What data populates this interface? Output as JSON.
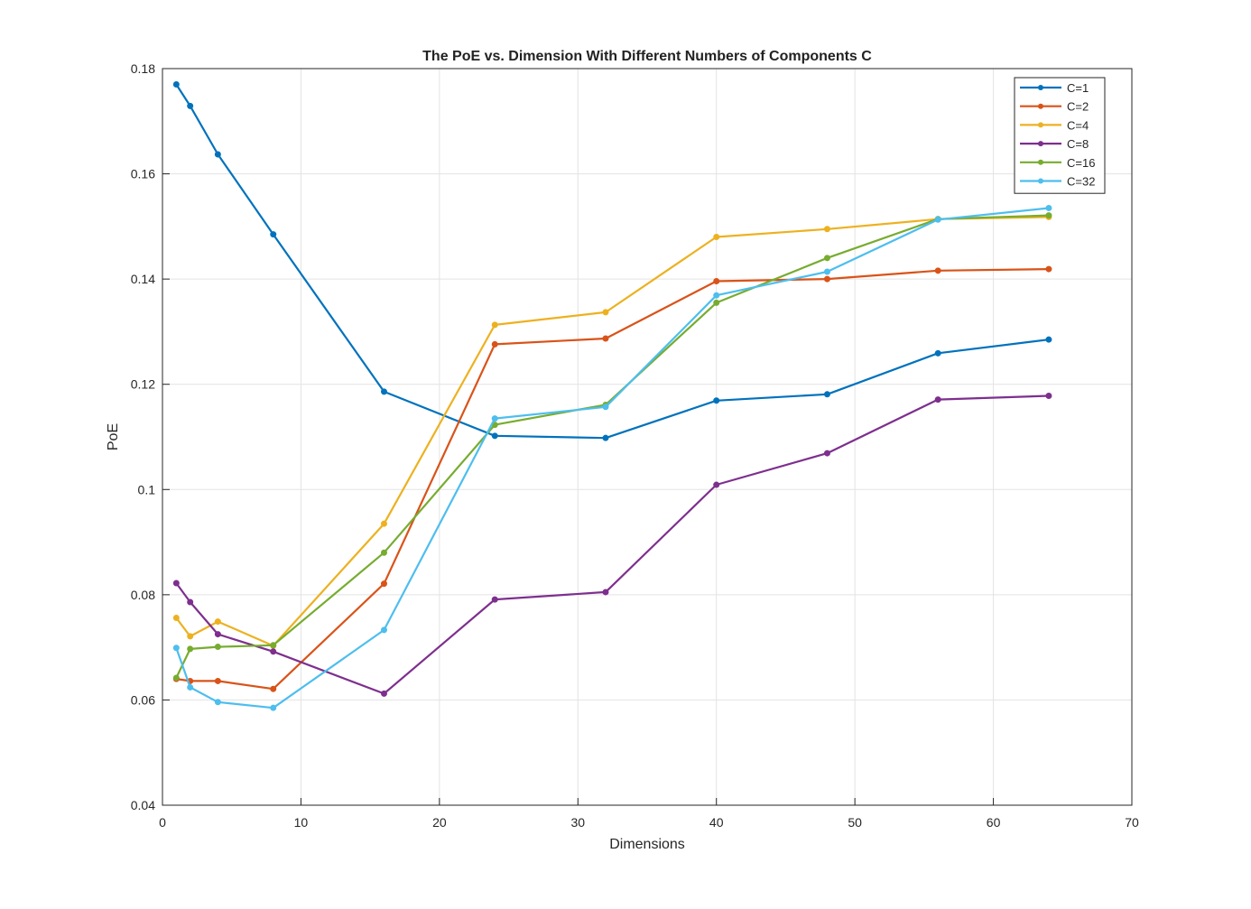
{
  "chart_data": {
    "type": "line",
    "title": "The PoE vs. Dimension With Different Numbers of Components C",
    "xlabel": "Dimensions",
    "ylabel": "PoE",
    "xlim": [
      0,
      70
    ],
    "ylim": [
      0.04,
      0.18
    ],
    "xticks": [
      0,
      10,
      20,
      30,
      40,
      50,
      60,
      70
    ],
    "yticks": [
      0.04,
      0.06,
      0.08,
      0.1,
      0.12,
      0.14,
      0.16,
      0.18
    ],
    "xtick_labels": [
      "0",
      "10",
      "20",
      "30",
      "40",
      "50",
      "60",
      "70"
    ],
    "ytick_labels": [
      "0.04",
      "0.06",
      "0.08",
      "0.1",
      "0.12",
      "0.14",
      "0.16",
      "0.18"
    ],
    "grid": true,
    "legend_position": "top-right",
    "x": [
      1,
      2,
      4,
      8,
      16,
      24,
      32,
      40,
      48,
      56,
      64
    ],
    "series": [
      {
        "name": "C=1",
        "color": "#0072BD",
        "values": [
          0.177,
          0.1729,
          0.1637,
          0.1485,
          0.1186,
          0.1102,
          0.1098,
          0.1169,
          0.1181,
          0.1259,
          0.1285
        ]
      },
      {
        "name": "C=2",
        "color": "#D95319",
        "values": [
          0.064,
          0.0636,
          0.0636,
          0.0621,
          0.0821,
          0.1276,
          0.1287,
          0.1396,
          0.14,
          0.1416,
          0.1419
        ]
      },
      {
        "name": "C=4",
        "color": "#EDB120",
        "values": [
          0.0756,
          0.0721,
          0.0749,
          0.0703,
          0.0935,
          0.1313,
          0.1337,
          0.148,
          0.1495,
          0.1514,
          0.1518
        ]
      },
      {
        "name": "C=8",
        "color": "#7E2F8E",
        "values": [
          0.0822,
          0.0786,
          0.0725,
          0.0692,
          0.0612,
          0.0791,
          0.0805,
          0.1009,
          0.1069,
          0.1171,
          0.1178
        ]
      },
      {
        "name": "C=16",
        "color": "#77AC30",
        "values": [
          0.0642,
          0.0697,
          0.0701,
          0.0704,
          0.088,
          0.1123,
          0.1161,
          0.1355,
          0.144,
          0.1514,
          0.1521
        ]
      },
      {
        "name": "C=32",
        "color": "#4DBEEE",
        "values": [
          0.0699,
          0.0624,
          0.0596,
          0.0585,
          0.0733,
          0.1135,
          0.1157,
          0.1369,
          0.1414,
          0.1513,
          0.1535
        ]
      }
    ]
  }
}
